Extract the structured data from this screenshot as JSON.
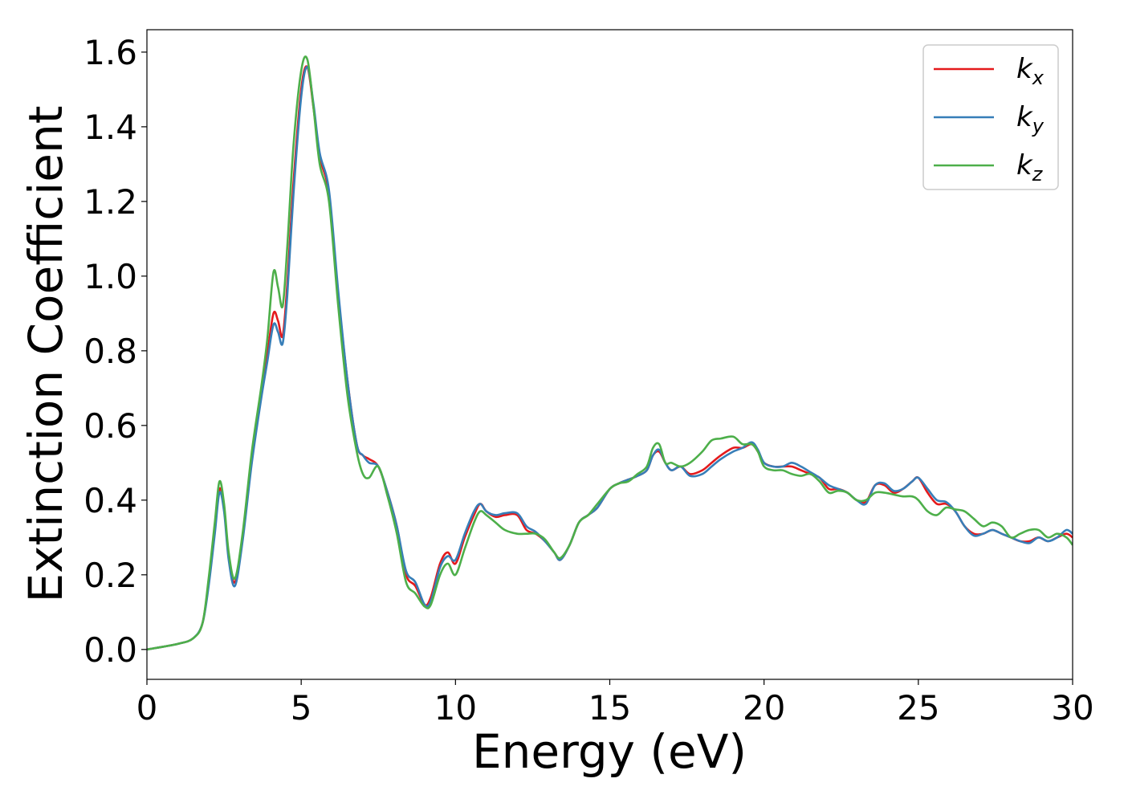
{
  "chart_data": {
    "type": "line",
    "xlabel": "Energy (eV)",
    "ylabel": "Extinction Coefficient",
    "xlim": [
      0,
      30
    ],
    "ylim": [
      -0.08,
      1.66
    ],
    "xticks": [
      "0",
      "5",
      "10",
      "15",
      "20",
      "25",
      "30"
    ],
    "yticks": [
      "0.0",
      "0.2",
      "0.4",
      "0.6",
      "0.8",
      "1.0",
      "1.2",
      "1.4",
      "1.6"
    ],
    "grid": false,
    "legend_position": "top-right",
    "series": [
      {
        "name": "k",
        "sub": "x",
        "color": "#e41a1c",
        "x": [
          0,
          1,
          1.5,
          1.8,
          2.0,
          2.2,
          2.35,
          2.5,
          2.65,
          2.85,
          3.1,
          3.4,
          3.7,
          3.9,
          4.1,
          4.25,
          4.4,
          4.55,
          4.75,
          5.0,
          5.2,
          5.4,
          5.6,
          5.9,
          6.2,
          6.5,
          6.8,
          7.0,
          7.2,
          7.5,
          7.8,
          8.1,
          8.4,
          8.7,
          9.0,
          9.2,
          9.5,
          9.75,
          10.0,
          10.3,
          10.6,
          10.8,
          11.0,
          11.3,
          11.6,
          12.0,
          12.3,
          12.6,
          12.9,
          13.2,
          13.4,
          13.7,
          14.0,
          14.3,
          14.6,
          15.0,
          15.3,
          15.6,
          15.9,
          16.2,
          16.4,
          16.6,
          16.8,
          17.0,
          17.3,
          17.6,
          18.0,
          18.3,
          18.6,
          19.0,
          19.3,
          19.6,
          19.8,
          20.0,
          20.3,
          20.6,
          20.9,
          21.2,
          21.5,
          21.8,
          22.1,
          22.4,
          22.7,
          23.0,
          23.3,
          23.6,
          23.9,
          24.2,
          24.5,
          24.8,
          25.0,
          25.3,
          25.6,
          25.9,
          26.2,
          26.5,
          26.8,
          27.1,
          27.4,
          27.7,
          28.0,
          28.3,
          28.6,
          28.9,
          29.2,
          29.5,
          29.8,
          30.0
        ],
        "y": [
          0.0,
          0.015,
          0.03,
          0.07,
          0.18,
          0.32,
          0.43,
          0.38,
          0.25,
          0.18,
          0.3,
          0.52,
          0.68,
          0.79,
          0.9,
          0.88,
          0.84,
          0.98,
          1.25,
          1.5,
          1.56,
          1.45,
          1.32,
          1.22,
          0.95,
          0.72,
          0.55,
          0.52,
          0.51,
          0.49,
          0.42,
          0.33,
          0.2,
          0.17,
          0.12,
          0.14,
          0.23,
          0.26,
          0.23,
          0.3,
          0.36,
          0.39,
          0.37,
          0.355,
          0.36,
          0.36,
          0.32,
          0.31,
          0.29,
          0.26,
          0.24,
          0.28,
          0.34,
          0.36,
          0.38,
          0.43,
          0.445,
          0.455,
          0.465,
          0.48,
          0.52,
          0.53,
          0.5,
          0.48,
          0.49,
          0.47,
          0.48,
          0.5,
          0.52,
          0.54,
          0.54,
          0.55,
          0.53,
          0.5,
          0.49,
          0.49,
          0.49,
          0.48,
          0.47,
          0.46,
          0.43,
          0.43,
          0.42,
          0.4,
          0.395,
          0.44,
          0.44,
          0.42,
          0.43,
          0.45,
          0.46,
          0.42,
          0.39,
          0.39,
          0.37,
          0.33,
          0.31,
          0.31,
          0.32,
          0.31,
          0.3,
          0.29,
          0.29,
          0.3,
          0.29,
          0.3,
          0.31,
          0.3
        ]
      },
      {
        "name": "k",
        "sub": "y",
        "color": "#377eb8",
        "x": [
          0,
          1,
          1.5,
          1.8,
          2.0,
          2.2,
          2.35,
          2.5,
          2.65,
          2.85,
          3.1,
          3.4,
          3.7,
          3.9,
          4.1,
          4.25,
          4.4,
          4.55,
          4.75,
          5.0,
          5.2,
          5.4,
          5.6,
          5.9,
          6.2,
          6.5,
          6.8,
          7.0,
          7.2,
          7.5,
          7.8,
          8.1,
          8.4,
          8.7,
          9.0,
          9.2,
          9.5,
          9.75,
          10.0,
          10.3,
          10.6,
          10.8,
          11.0,
          11.3,
          11.6,
          12.0,
          12.3,
          12.6,
          12.9,
          13.2,
          13.4,
          13.7,
          14.0,
          14.3,
          14.6,
          15.0,
          15.3,
          15.6,
          15.9,
          16.2,
          16.4,
          16.6,
          16.8,
          17.0,
          17.3,
          17.6,
          18.0,
          18.3,
          18.6,
          19.0,
          19.3,
          19.6,
          19.8,
          20.0,
          20.3,
          20.6,
          20.9,
          21.2,
          21.5,
          21.8,
          22.1,
          22.4,
          22.7,
          23.0,
          23.3,
          23.6,
          23.9,
          24.2,
          24.5,
          24.8,
          25.0,
          25.3,
          25.6,
          25.9,
          26.2,
          26.5,
          26.8,
          27.1,
          27.4,
          27.7,
          28.0,
          28.3,
          28.6,
          28.9,
          29.2,
          29.5,
          29.8,
          30.0
        ],
        "y": [
          0.0,
          0.015,
          0.03,
          0.07,
          0.17,
          0.31,
          0.42,
          0.37,
          0.24,
          0.17,
          0.29,
          0.5,
          0.67,
          0.77,
          0.87,
          0.85,
          0.82,
          0.95,
          1.22,
          1.48,
          1.56,
          1.46,
          1.33,
          1.23,
          0.96,
          0.72,
          0.55,
          0.52,
          0.5,
          0.49,
          0.42,
          0.33,
          0.21,
          0.18,
          0.12,
          0.13,
          0.22,
          0.25,
          0.24,
          0.31,
          0.37,
          0.39,
          0.37,
          0.36,
          0.365,
          0.365,
          0.33,
          0.315,
          0.29,
          0.26,
          0.24,
          0.28,
          0.34,
          0.36,
          0.38,
          0.43,
          0.445,
          0.455,
          0.465,
          0.48,
          0.52,
          0.535,
          0.5,
          0.48,
          0.49,
          0.465,
          0.47,
          0.49,
          0.51,
          0.53,
          0.54,
          0.555,
          0.535,
          0.5,
          0.49,
          0.49,
          0.5,
          0.49,
          0.475,
          0.46,
          0.44,
          0.43,
          0.42,
          0.4,
          0.39,
          0.44,
          0.445,
          0.425,
          0.43,
          0.45,
          0.46,
          0.43,
          0.4,
          0.395,
          0.37,
          0.33,
          0.305,
          0.31,
          0.32,
          0.31,
          0.3,
          0.29,
          0.285,
          0.3,
          0.29,
          0.3,
          0.32,
          0.31
        ]
      },
      {
        "name": "k",
        "sub": "z",
        "color": "#4daf4a",
        "x": [
          0,
          1,
          1.5,
          1.8,
          2.0,
          2.2,
          2.35,
          2.5,
          2.65,
          2.85,
          3.1,
          3.4,
          3.7,
          3.9,
          4.1,
          4.25,
          4.4,
          4.55,
          4.75,
          5.0,
          5.2,
          5.4,
          5.6,
          5.9,
          6.2,
          6.5,
          6.8,
          7.0,
          7.2,
          7.5,
          7.8,
          8.1,
          8.4,
          8.7,
          9.0,
          9.2,
          9.5,
          9.75,
          10.0,
          10.3,
          10.6,
          10.8,
          11.0,
          11.3,
          11.6,
          12.0,
          12.3,
          12.6,
          12.9,
          13.2,
          13.4,
          13.7,
          14.0,
          14.3,
          14.6,
          15.0,
          15.3,
          15.6,
          15.9,
          16.2,
          16.4,
          16.6,
          16.8,
          17.0,
          17.3,
          17.6,
          18.0,
          18.3,
          18.6,
          19.0,
          19.3,
          19.6,
          19.8,
          20.0,
          20.3,
          20.6,
          20.9,
          21.2,
          21.5,
          21.8,
          22.1,
          22.4,
          22.7,
          23.0,
          23.3,
          23.6,
          23.9,
          24.2,
          24.5,
          24.8,
          25.0,
          25.3,
          25.6,
          25.9,
          26.2,
          26.5,
          26.8,
          27.1,
          27.4,
          27.7,
          28.0,
          28.3,
          28.6,
          28.9,
          29.2,
          29.5,
          29.8,
          30.0
        ],
        "y": [
          0.0,
          0.015,
          0.03,
          0.07,
          0.19,
          0.34,
          0.45,
          0.39,
          0.26,
          0.19,
          0.31,
          0.53,
          0.7,
          0.83,
          1.01,
          0.97,
          0.92,
          1.08,
          1.35,
          1.55,
          1.58,
          1.45,
          1.3,
          1.2,
          0.92,
          0.68,
          0.53,
          0.47,
          0.46,
          0.49,
          0.41,
          0.31,
          0.18,
          0.15,
          0.115,
          0.12,
          0.2,
          0.23,
          0.2,
          0.27,
          0.34,
          0.37,
          0.36,
          0.34,
          0.32,
          0.31,
          0.31,
          0.31,
          0.295,
          0.26,
          0.245,
          0.28,
          0.34,
          0.36,
          0.39,
          0.43,
          0.445,
          0.45,
          0.47,
          0.49,
          0.54,
          0.55,
          0.5,
          0.5,
          0.49,
          0.5,
          0.53,
          0.56,
          0.565,
          0.57,
          0.55,
          0.55,
          0.53,
          0.49,
          0.48,
          0.48,
          0.47,
          0.465,
          0.47,
          0.45,
          0.42,
          0.425,
          0.42,
          0.4,
          0.4,
          0.42,
          0.42,
          0.415,
          0.41,
          0.41,
          0.4,
          0.37,
          0.36,
          0.38,
          0.375,
          0.37,
          0.35,
          0.33,
          0.34,
          0.33,
          0.3,
          0.31,
          0.32,
          0.32,
          0.3,
          0.31,
          0.3,
          0.28
        ]
      }
    ]
  }
}
